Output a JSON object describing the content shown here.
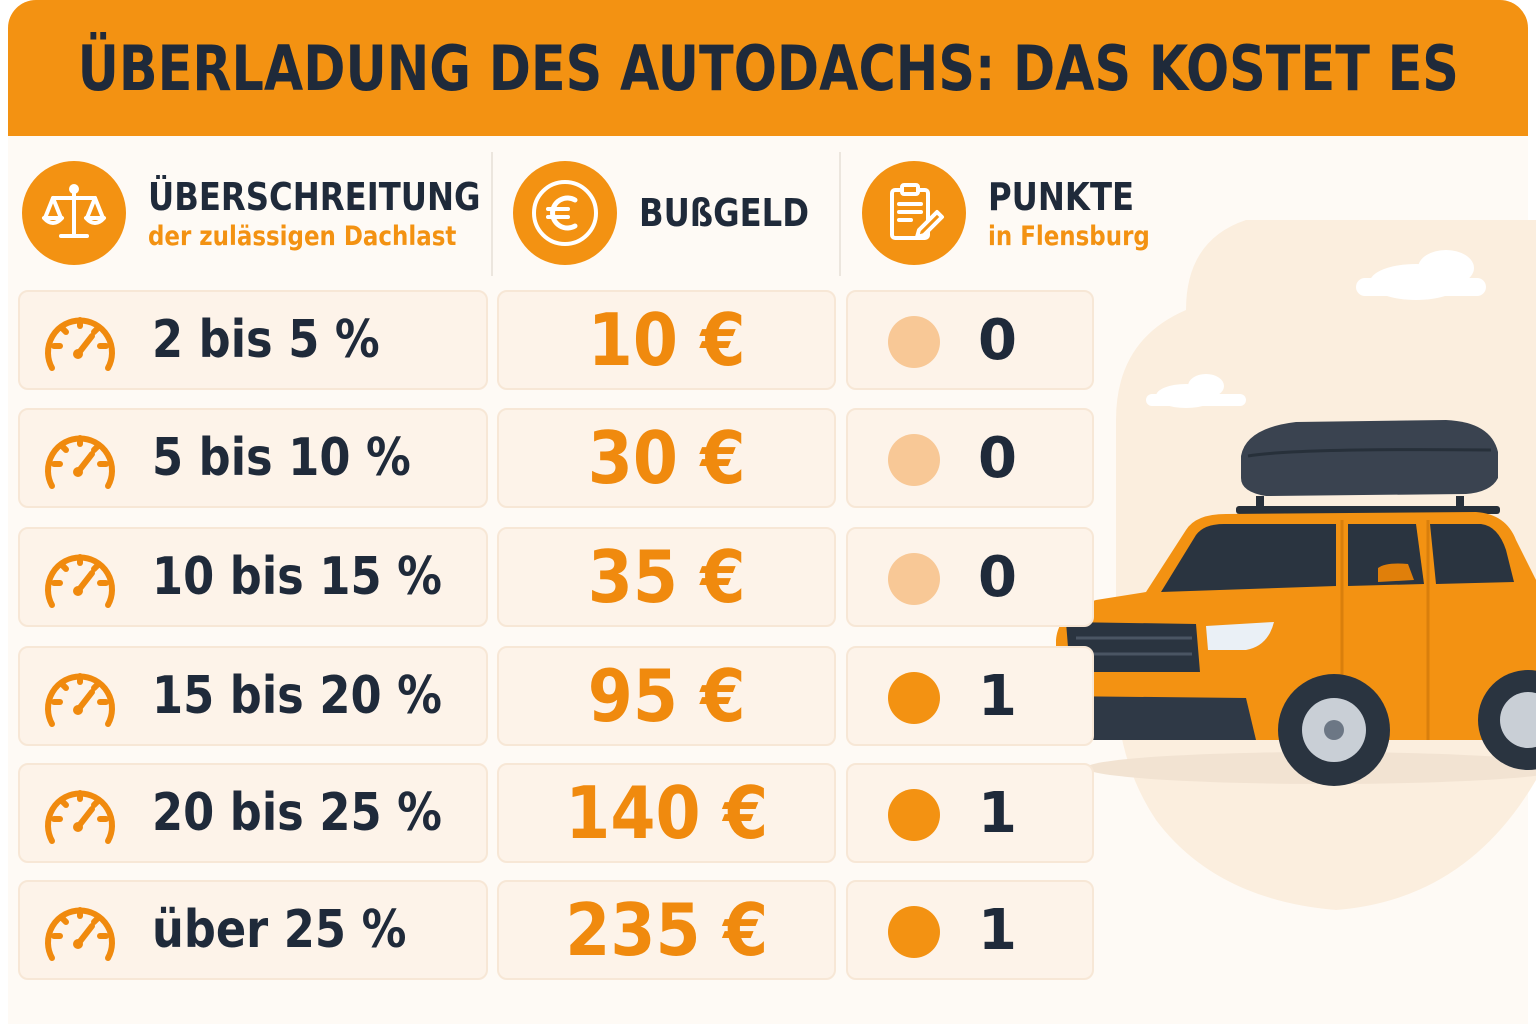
{
  "title": "ÜBERLADUNG DES AUTODACHS: DAS KOSTET ES",
  "colors": {
    "accent": "#f39212",
    "text": "#1f2a3a",
    "dot_zero": "#f8c896",
    "dot_one": "#f39212"
  },
  "headers": {
    "excess": {
      "main": "ÜBERSCHREITUNG",
      "sub": "der zulässigen Dachlast",
      "icon": "scales-icon"
    },
    "fine": {
      "main": "BUßGELD",
      "icon": "euro-icon"
    },
    "points": {
      "main": "PUNKTE",
      "sub": "in Flensburg",
      "icon": "clipboard-icon"
    }
  },
  "rows": [
    {
      "range": "2 bis 5 %",
      "fine": "10 €",
      "points": "0"
    },
    {
      "range": "5 bis 10 %",
      "fine": "30 €",
      "points": "0"
    },
    {
      "range": "10 bis 15 %",
      "fine": "35 €",
      "points": "0"
    },
    {
      "range": "15 bis 20 %",
      "fine": "95 €",
      "points": "1"
    },
    {
      "range": "20 bis 25 %",
      "fine": "140 €",
      "points": "1"
    },
    {
      "range": "über 25 %",
      "fine": "235 €",
      "points": "1"
    }
  ],
  "illustration": {
    "icon": "car-with-roof-box-icon"
  }
}
